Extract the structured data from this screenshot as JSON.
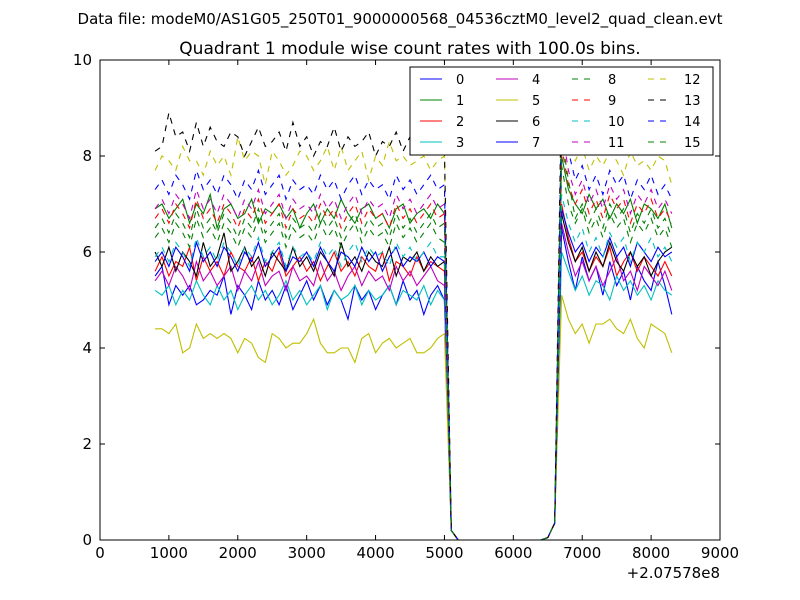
{
  "chart_data": {
    "type": "line",
    "suptitle": "Data file: modeM0/AS1G05_250T01_9000000568_04536cztM0_level2_quad_clean.evt",
    "title": "Quadrant 1 module wise count rates with 100.0s bins.",
    "xlabel": "",
    "ylabel": "",
    "x_offset_label": "+2.07578e8",
    "xlim": [
      0,
      9000
    ],
    "ylim": [
      0,
      10
    ],
    "x_ticks": [
      "0",
      "1000",
      "2000",
      "3000",
      "4000",
      "5000",
      "6000",
      "7000",
      "8000",
      "9000"
    ],
    "y_ticks": [
      "0",
      "2",
      "4",
      "6",
      "8",
      "10"
    ],
    "grid": false,
    "legend_position": "top-right",
    "segment_1": {
      "x_start": 800,
      "x_end": 5000,
      "step": 100
    },
    "gap": {
      "x": [
        5100,
        5200,
        5300,
        5400,
        5500,
        5600,
        5700,
        5800,
        5900,
        6000,
        6100,
        6200,
        6300,
        6400,
        6500,
        6600
      ]
    },
    "segment_2": {
      "x_start": 6700,
      "x_end": 8300,
      "step": 100
    },
    "series": [
      {
        "name": "0",
        "color": "#0000ff",
        "dash": "solid",
        "level1": 5.3,
        "level2": 5.6,
        "values1": [
          5.5,
          5.7,
          4.9,
          5.3,
          5.1,
          5.3,
          4.9,
          5.0,
          5.2,
          5.1,
          5.5,
          4.7,
          5.3,
          5.1,
          4.8,
          5.4,
          5.0,
          5.2,
          4.9,
          5.3,
          4.8,
          5.1,
          5.4,
          5.0,
          5.3,
          4.9,
          5.2,
          5.0,
          4.6,
          5.3,
          5.0,
          5.2,
          4.8,
          5.1,
          5.3,
          4.9,
          5.4,
          5.0,
          5.2,
          4.7,
          5.1,
          5.3,
          5.0
        ],
        "values2": [
          6.5,
          5.8,
          5.2,
          5.9,
          5.4,
          5.7,
          5.1,
          5.8,
          5.3,
          5.6,
          5.0,
          5.7,
          5.4,
          5.2,
          5.8,
          5.3,
          4.7
        ]
      },
      {
        "name": "1",
        "color": "#008000",
        "dash": "solid",
        "level1": 6.8,
        "level2": 7.0,
        "values1": [
          6.9,
          7.0,
          6.7,
          6.9,
          7.1,
          6.6,
          7.0,
          6.8,
          7.2,
          6.5,
          6.9,
          7.0,
          6.7,
          6.8,
          7.1,
          6.6,
          6.9,
          6.8,
          7.0,
          6.7,
          6.9,
          6.5,
          6.8,
          7.0,
          6.6,
          6.9,
          6.7,
          7.1,
          6.8,
          6.6,
          6.9,
          7.0,
          6.7,
          6.8,
          6.5,
          6.9,
          7.0,
          6.6,
          6.8,
          6.9,
          6.7,
          7.0,
          6.8
        ],
        "values2": [
          8.0,
          7.3,
          7.0,
          6.8,
          7.2,
          6.9,
          7.1,
          6.7,
          7.0,
          6.8,
          7.1,
          6.6,
          7.0,
          6.9,
          6.7,
          7.0,
          6.5
        ]
      },
      {
        "name": "2",
        "color": "#ff0000",
        "dash": "solid",
        "level1": 5.7,
        "level2": 5.8,
        "values1": [
          5.6,
          5.9,
          5.5,
          5.8,
          5.7,
          6.1,
          5.4,
          5.9,
          5.6,
          5.8,
          5.5,
          6.0,
          5.7,
          5.6,
          5.9,
          5.4,
          5.8,
          5.6,
          6.0,
          5.5,
          5.7,
          5.9,
          5.6,
          5.8,
          5.4,
          5.7,
          6.0,
          5.6,
          5.8,
          5.5,
          5.9,
          5.7,
          5.6,
          6.0,
          5.4,
          5.8,
          5.7,
          5.5,
          5.9,
          5.6,
          5.8,
          5.7,
          5.6
        ],
        "values2": [
          7.0,
          6.3,
          5.8,
          6.0,
          5.6,
          5.9,
          5.7,
          6.1,
          5.5,
          5.8,
          6.0,
          5.6,
          5.9,
          5.7,
          5.5,
          5.8,
          5.5
        ]
      },
      {
        "name": "3",
        "color": "#00bfbf",
        "dash": "solid",
        "level1": 5.1,
        "level2": 5.3,
        "values1": [
          5.2,
          5.1,
          5.3,
          4.9,
          5.2,
          5.0,
          5.4,
          5.1,
          4.9,
          5.3,
          5.0,
          5.2,
          4.8,
          5.1,
          5.3,
          5.0,
          5.2,
          4.9,
          5.1,
          5.4,
          5.0,
          5.2,
          4.9,
          5.1,
          5.3,
          4.8,
          5.2,
          5.0,
          5.1,
          5.3,
          4.9,
          5.2,
          5.0,
          5.1,
          5.3,
          4.9,
          5.2,
          5.1,
          5.0,
          5.3,
          4.9,
          5.2,
          5.0
        ],
        "values2": [
          6.0,
          5.6,
          5.2,
          5.5,
          5.1,
          5.4,
          5.3,
          5.0,
          5.5,
          5.2,
          5.4,
          5.1,
          5.3,
          5.0,
          5.4,
          5.2,
          5.1
        ]
      },
      {
        "name": "4",
        "color": "#bf00bf",
        "dash": "solid",
        "level1": 5.5,
        "level2": 5.6,
        "values1": [
          5.4,
          5.6,
          5.3,
          5.7,
          5.5,
          5.2,
          5.8,
          5.4,
          5.6,
          5.3,
          5.5,
          5.7,
          5.2,
          5.6,
          5.4,
          5.8,
          5.3,
          5.5,
          5.6,
          5.2,
          5.7,
          5.4,
          5.5,
          5.3,
          5.8,
          5.4,
          5.6,
          5.2,
          5.5,
          5.7,
          5.3,
          5.6,
          5.4,
          5.5,
          5.2,
          5.7,
          5.4,
          5.6,
          5.3,
          5.5,
          5.7,
          5.4,
          5.3
        ],
        "values2": [
          6.6,
          6.0,
          5.5,
          5.8,
          5.4,
          5.7,
          5.3,
          5.6,
          5.9,
          5.4,
          5.6,
          5.2,
          5.7,
          5.5,
          5.3,
          5.6,
          5.2
        ]
      },
      {
        "name": "5",
        "color": "#bfbf00",
        "dash": "solid",
        "level1": 4.2,
        "level2": 4.4,
        "values1": [
          4.4,
          4.4,
          4.3,
          4.5,
          3.9,
          4.0,
          4.5,
          4.2,
          4.3,
          4.2,
          4.3,
          4.2,
          3.9,
          4.2,
          4.1,
          3.8,
          3.7,
          4.3,
          4.2,
          4.0,
          4.1,
          4.1,
          4.3,
          4.6,
          4.1,
          3.9,
          3.9,
          4.0,
          4.0,
          3.7,
          4.2,
          4.3,
          3.9,
          4.1,
          4.2,
          4.0,
          4.1,
          4.2,
          3.9,
          3.9,
          4.0,
          4.2,
          4.3
        ],
        "values2": [
          5.1,
          4.6,
          4.3,
          4.5,
          4.1,
          4.5,
          4.5,
          4.6,
          4.4,
          4.3,
          4.6,
          4.2,
          4.0,
          4.5,
          4.4,
          4.3,
          3.9
        ]
      },
      {
        "name": "6",
        "color": "#000000",
        "dash": "solid",
        "level1": 5.8,
        "level2": 5.9,
        "values1": [
          6.0,
          5.7,
          6.1,
          5.6,
          6.0,
          5.8,
          5.5,
          6.2,
          5.7,
          5.9,
          6.4,
          5.6,
          5.8,
          6.1,
          5.7,
          5.9,
          5.5,
          6.0,
          5.8,
          5.6,
          6.1,
          5.7,
          5.9,
          5.6,
          6.0,
          5.8,
          5.5,
          6.2,
          5.7,
          5.9,
          5.6,
          6.0,
          5.8,
          5.7,
          6.1,
          5.5,
          5.9,
          5.8,
          6.0,
          5.6,
          5.9,
          5.7,
          5.8
        ],
        "values2": [
          6.8,
          6.2,
          5.8,
          6.1,
          5.6,
          6.0,
          5.7,
          6.2,
          5.8,
          5.6,
          6.0,
          5.7,
          5.9,
          5.5,
          5.8,
          6.0,
          6.1
        ]
      },
      {
        "name": "7",
        "color": "#0000ff",
        "dash": "solid",
        "level1": 5.9,
        "level2": 6.1,
        "values1": [
          5.8,
          6.0,
          5.7,
          6.1,
          5.9,
          5.6,
          6.2,
          5.8,
          6.0,
          5.7,
          6.1,
          5.9,
          5.6,
          6.0,
          5.8,
          6.2,
          5.7,
          5.9,
          6.1,
          5.6,
          5.9,
          5.8,
          6.0,
          5.7,
          6.1,
          5.8,
          5.6,
          6.0,
          5.9,
          5.7,
          6.1,
          5.8,
          6.0,
          5.6,
          5.9,
          6.1,
          5.7,
          5.9,
          5.8,
          6.0,
          5.7,
          5.9,
          5.8
        ],
        "values2": [
          6.9,
          6.4,
          6.0,
          6.2,
          5.8,
          6.1,
          5.9,
          6.3,
          5.9,
          6.1,
          5.7,
          6.2,
          6.0,
          5.8,
          6.1,
          5.9,
          6.0
        ]
      },
      {
        "name": "8",
        "color": "#008000",
        "dash": "dashed",
        "level1": 6.4,
        "level2": 6.6,
        "values1": [
          6.3,
          6.5,
          6.2,
          6.6,
          6.4,
          6.1,
          6.7,
          6.3,
          6.5,
          6.2,
          6.6,
          6.4,
          6.1,
          6.5,
          6.3,
          6.7,
          6.2,
          6.4,
          6.6,
          6.1,
          6.5,
          6.3,
          6.4,
          6.2,
          6.6,
          6.3,
          6.5,
          6.1,
          6.4,
          6.6,
          6.2,
          6.5,
          6.3,
          6.4,
          6.1,
          6.6,
          6.3,
          6.5,
          6.2,
          6.4,
          6.6,
          6.3,
          6.2
        ],
        "values2": [
          7.8,
          7.0,
          6.6,
          6.9,
          6.4,
          6.7,
          6.3,
          6.8,
          6.5,
          6.7,
          6.2,
          6.6,
          6.4,
          6.7,
          6.3,
          6.5,
          6.1
        ]
      },
      {
        "name": "9",
        "color": "#ff0000",
        "dash": "dashed",
        "level1": 6.8,
        "level2": 7.0,
        "values1": [
          6.7,
          6.9,
          6.6,
          7.0,
          6.8,
          6.5,
          7.1,
          6.7,
          6.9,
          6.6,
          7.0,
          6.8,
          6.5,
          6.9,
          6.7,
          7.1,
          6.6,
          6.8,
          7.0,
          6.5,
          6.9,
          6.7,
          6.8,
          6.6,
          7.0,
          6.7,
          6.9,
          6.5,
          6.8,
          7.0,
          6.6,
          6.9,
          6.7,
          6.8,
          6.5,
          7.0,
          6.7,
          6.9,
          6.6,
          6.8,
          7.0,
          6.7,
          6.8
        ],
        "values2": [
          8.2,
          7.4,
          7.0,
          7.3,
          6.8,
          7.1,
          6.7,
          7.2,
          6.9,
          7.1,
          6.6,
          7.0,
          6.8,
          7.1,
          6.7,
          6.9,
          6.6
        ]
      },
      {
        "name": "10",
        "color": "#00bfbf",
        "dash": "dashed",
        "level1": 6.0,
        "level2": 6.2,
        "values1": [
          5.9,
          6.1,
          5.8,
          6.2,
          6.0,
          5.7,
          6.3,
          5.9,
          6.1,
          5.8,
          6.2,
          6.0,
          5.7,
          6.1,
          5.9,
          6.3,
          5.8,
          6.0,
          6.2,
          5.7,
          6.1,
          5.9,
          6.0,
          5.8,
          6.2,
          5.9,
          6.1,
          5.7,
          6.0,
          6.2,
          5.8,
          6.1,
          5.9,
          6.0,
          5.7,
          6.2,
          5.9,
          6.1,
          5.8,
          6.0,
          6.2,
          5.9,
          5.9
        ],
        "values2": [
          7.2,
          6.6,
          6.2,
          6.5,
          6.0,
          6.3,
          5.9,
          6.4,
          6.1,
          6.3,
          5.8,
          6.2,
          6.0,
          6.3,
          5.9,
          6.1,
          5.8
        ]
      },
      {
        "name": "11",
        "color": "#bf00bf",
        "dash": "dashed",
        "level1": 7.0,
        "level2": 7.2,
        "values1": [
          6.9,
          7.1,
          6.8,
          7.2,
          7.0,
          6.7,
          7.3,
          6.9,
          7.1,
          6.8,
          7.2,
          7.0,
          6.7,
          7.1,
          6.9,
          7.3,
          6.8,
          7.0,
          7.2,
          6.7,
          7.1,
          6.9,
          7.0,
          6.8,
          7.2,
          6.9,
          7.1,
          6.7,
          7.0,
          7.2,
          6.8,
          7.1,
          6.9,
          7.0,
          6.7,
          7.2,
          6.9,
          7.1,
          6.8,
          7.0,
          7.2,
          6.9,
          7.0
        ],
        "values2": [
          8.6,
          7.7,
          7.2,
          7.5,
          7.0,
          7.3,
          6.9,
          7.4,
          7.1,
          7.3,
          6.8,
          7.2,
          7.0,
          7.3,
          6.9,
          7.1,
          6.8
        ]
      },
      {
        "name": "12",
        "color": "#bfbf00",
        "dash": "dashed",
        "level1": 7.9,
        "level2": 7.9,
        "values1": [
          7.7,
          8.0,
          7.9,
          7.7,
          8.2,
          7.9,
          7.9,
          7.6,
          8.1,
          7.8,
          8.0,
          7.6,
          8.4,
          7.9,
          8.1,
          8.0,
          7.4,
          8.1,
          7.9,
          7.6,
          7.8,
          8.1,
          8.0,
          7.7,
          7.9,
          8.2,
          7.7,
          8.2,
          7.7,
          7.9,
          8.1,
          7.5,
          8.0,
          7.8,
          8.3,
          7.9,
          8.0,
          7.8,
          7.9,
          8.0,
          7.7,
          7.9,
          8.0
        ],
        "values2": [
          9.2,
          8.4,
          7.9,
          8.2,
          7.7,
          8.0,
          7.8,
          8.1,
          7.9,
          7.6,
          8.1,
          7.8,
          7.9,
          7.7,
          8.0,
          7.9,
          7.4
        ]
      },
      {
        "name": "13",
        "color": "#000000",
        "dash": "dashed",
        "level1": 8.3,
        "level2": 8.4,
        "values1": [
          8.1,
          8.2,
          8.9,
          8.4,
          8.5,
          8.1,
          8.7,
          8.2,
          8.6,
          8.3,
          8.2,
          8.5,
          8.4,
          8.0,
          8.3,
          8.6,
          8.2,
          8.3,
          8.5,
          8.1,
          8.7,
          8.2,
          8.4,
          8.0,
          8.3,
          8.2,
          8.6,
          8.1,
          8.4,
          8.2,
          8.3,
          8.5,
          8.0,
          8.3,
          8.2,
          8.5,
          8.1,
          8.4,
          8.3,
          8.2,
          8.0,
          8.3,
          8.2
        ],
        "values2": [
          9.7,
          8.9,
          8.4,
          8.6,
          8.2,
          8.5,
          8.3,
          8.7,
          8.4,
          8.1,
          8.5,
          8.3,
          8.4,
          8.2,
          8.5,
          8.3,
          8.0
        ]
      },
      {
        "name": "14",
        "color": "#0000ff",
        "dash": "dashed",
        "level1": 7.4,
        "level2": 7.5,
        "values1": [
          7.3,
          7.5,
          7.2,
          7.6,
          7.4,
          7.1,
          7.7,
          7.3,
          7.5,
          7.2,
          7.6,
          7.4,
          7.1,
          7.5,
          7.3,
          7.7,
          7.2,
          7.4,
          7.6,
          7.1,
          7.5,
          7.3,
          7.4,
          7.2,
          7.6,
          7.3,
          7.5,
          7.1,
          7.4,
          7.6,
          7.2,
          7.5,
          7.3,
          7.4,
          7.1,
          7.6,
          7.3,
          7.5,
          7.2,
          7.4,
          7.6,
          7.3,
          7.4
        ],
        "values2": [
          9.0,
          8.1,
          7.5,
          7.8,
          7.3,
          7.6,
          7.2,
          7.7,
          7.4,
          7.6,
          7.1,
          7.5,
          7.3,
          7.6,
          7.2,
          7.4,
          7.1
        ]
      },
      {
        "name": "15",
        "color": "#008000",
        "dash": "dashed",
        "level1": 6.6,
        "level2": 6.7,
        "values1": [
          6.5,
          6.7,
          6.4,
          6.8,
          6.6,
          6.3,
          6.9,
          6.5,
          6.7,
          6.4,
          6.8,
          6.6,
          6.3,
          6.7,
          6.5,
          6.9,
          6.4,
          6.6,
          6.8,
          6.3,
          6.7,
          6.5,
          6.6,
          6.4,
          6.8,
          6.5,
          6.7,
          6.3,
          6.6,
          6.8,
          6.4,
          6.7,
          6.5,
          6.6,
          6.3,
          6.8,
          6.5,
          6.7,
          6.4,
          6.6,
          6.8,
          6.5,
          6.6
        ],
        "values2": [
          8.4,
          7.5,
          6.7,
          7.0,
          6.6,
          6.9,
          6.5,
          7.0,
          6.7,
          6.9,
          6.4,
          6.8,
          6.6,
          6.9,
          6.5,
          6.7,
          6.3
        ]
      }
    ]
  }
}
